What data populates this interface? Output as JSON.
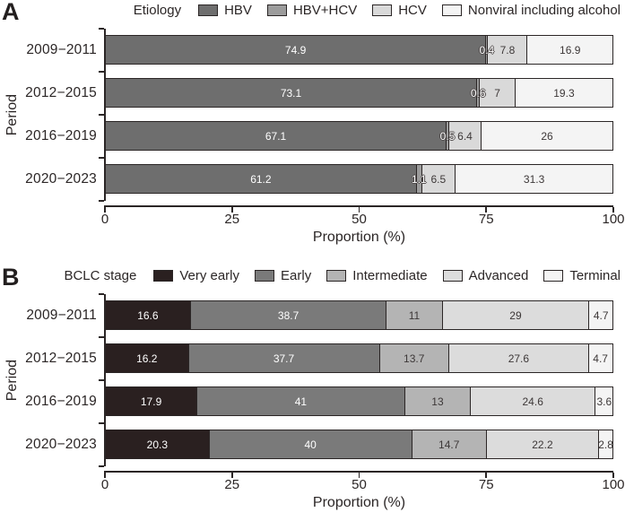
{
  "figure": {
    "background": "#ffffff",
    "axis_color": "#2b2626",
    "panel_labels": [
      "A",
      "B"
    ]
  },
  "chart_data": [
    {
      "type": "bar",
      "stacked": true,
      "orientation": "horizontal",
      "panel_label": "A",
      "legend_title": "Etiology",
      "legend_position": "top",
      "xlabel": "Proportion (%)",
      "ylabel": "Period",
      "xlim": [
        0,
        100
      ],
      "x_ticks": [
        "0",
        "25",
        "50",
        "75",
        "100"
      ],
      "categories": [
        "2009−2011",
        "2012−2015",
        "2016−2019",
        "2020−2023"
      ],
      "series": [
        {
          "name": "HBV",
          "color": "#6e6e6e",
          "label_style": "light",
          "values": [
            74.9,
            73.1,
            67.1,
            61.2
          ],
          "labels": [
            "74.9",
            "73.1",
            "67.1",
            "61.2"
          ]
        },
        {
          "name": "HBV+HCV",
          "color": "#9c9c9c",
          "label_style": "light",
          "values": [
            0.4,
            0.6,
            0.5,
            1.1
          ],
          "labels": [
            "0.4",
            "0.6",
            "0.5",
            "1.1"
          ]
        },
        {
          "name": "HCV",
          "color": "#d9d9d9",
          "label_style": "dark",
          "values": [
            7.8,
            7,
            6.4,
            6.5
          ],
          "labels": [
            "7.8",
            "7",
            "6.4",
            "6.5"
          ]
        },
        {
          "name": "Nonviral including alcohol",
          "color": "#f4f4f4",
          "label_style": "dark",
          "values": [
            16.9,
            19.3,
            26,
            31.3
          ],
          "labels": [
            "16.9",
            "19.3",
            "26",
            "31.3"
          ]
        }
      ]
    },
    {
      "type": "bar",
      "stacked": true,
      "orientation": "horizontal",
      "panel_label": "B",
      "legend_title": "BCLC stage",
      "legend_position": "top",
      "xlabel": "Proportion (%)",
      "ylabel": "Period",
      "xlim": [
        0,
        100
      ],
      "x_ticks": [
        "0",
        "25",
        "50",
        "75",
        "100"
      ],
      "categories": [
        "2009−2011",
        "2012−2015",
        "2016−2019",
        "2020−2023"
      ],
      "series": [
        {
          "name": "Very early",
          "color": "#2a2020",
          "label_style": "light",
          "values": [
            16.6,
            16.2,
            17.9,
            20.3
          ],
          "labels": [
            "16.6",
            "16.2",
            "17.9",
            "20.3"
          ]
        },
        {
          "name": "Early",
          "color": "#7a7a7a",
          "label_style": "light",
          "values": [
            38.7,
            37.7,
            41,
            40
          ],
          "labels": [
            "38.7",
            "37.7",
            "41",
            "40"
          ]
        },
        {
          "name": "Intermediate",
          "color": "#b4b4b4",
          "label_style": "dark",
          "values": [
            11,
            13.7,
            13,
            14.7
          ],
          "labels": [
            "11",
            "13.7",
            "13",
            "14.7"
          ]
        },
        {
          "name": "Advanced",
          "color": "#dcdcdc",
          "label_style": "dark",
          "values": [
            29,
            27.6,
            24.6,
            22.2
          ],
          "labels": [
            "29",
            "27.6",
            "24.6",
            "22.2"
          ]
        },
        {
          "name": "Terminal",
          "color": "#f4f4f4",
          "label_style": "dark",
          "values": [
            4.7,
            4.7,
            3.6,
            2.8
          ],
          "labels": [
            "4.7",
            "4.7",
            "3.6",
            "2.8"
          ]
        }
      ]
    }
  ]
}
